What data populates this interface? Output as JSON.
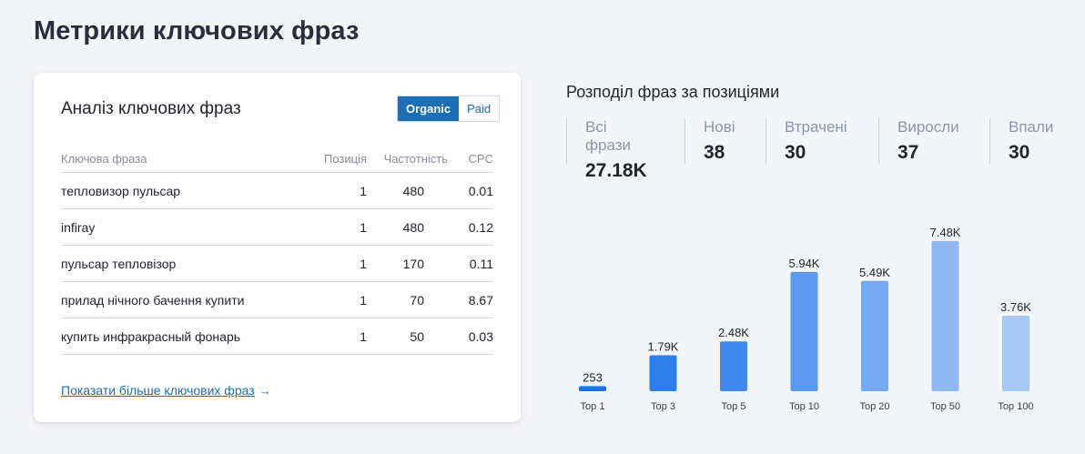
{
  "page": {
    "title": "Метрики ключових фраз"
  },
  "keywords_card": {
    "title": "Аналіз ключових фраз",
    "toggle": {
      "organic": "Organic",
      "paid": "Paid"
    },
    "columns": {
      "phrase": "Ключова фраза",
      "position": "Позиція",
      "frequency": "Частотність",
      "cpc": "CPC"
    },
    "rows": [
      {
        "phrase": "тепловизор пульсар",
        "position": "1",
        "frequency": "480",
        "cpc": "0.01"
      },
      {
        "phrase": "infiray",
        "position": "1",
        "frequency": "480",
        "cpc": "0.12"
      },
      {
        "phrase": "пульсар тепловізор",
        "position": "1",
        "frequency": "170",
        "cpc": "0.11"
      },
      {
        "phrase": "прилад нічного бачення купити",
        "position": "1",
        "frequency": "70",
        "cpc": "8.67"
      },
      {
        "phrase": "купить инфракрасный фонарь",
        "position": "1",
        "frequency": "50",
        "cpc": "0.03"
      }
    ],
    "more_link": "Показати більше ключових фраз",
    "more_arrow": "→"
  },
  "distribution": {
    "title": "Розподіл фраз за позиціями",
    "stats": [
      {
        "label": "Всі фрази",
        "value": "27.18K"
      },
      {
        "label": "Нові",
        "value": "38"
      },
      {
        "label": "Втрачені",
        "value": "30"
      },
      {
        "label": "Виросли",
        "value": "37"
      },
      {
        "label": "Впали",
        "value": "30"
      }
    ]
  },
  "colors": {
    "accent": "#1a6fb8",
    "bars": [
      "#1a73e8",
      "#2e7fea",
      "#4189ec",
      "#5a99ef",
      "#74a9f2",
      "#8eb9f5",
      "#a8c8f7"
    ]
  },
  "chart_data": {
    "type": "bar",
    "categories": [
      "Top 1",
      "Top 3",
      "Top 5",
      "Top 10",
      "Top 20",
      "Top 50",
      "Top 100"
    ],
    "values": [
      253,
      1790,
      2480,
      5940,
      5490,
      7480,
      3760
    ],
    "value_labels": [
      "253",
      "1.79K",
      "2.48K",
      "5.94K",
      "5.49K",
      "7.48K",
      "3.76K"
    ],
    "ylim": [
      0,
      7700
    ],
    "grid": false,
    "legend": "none"
  }
}
